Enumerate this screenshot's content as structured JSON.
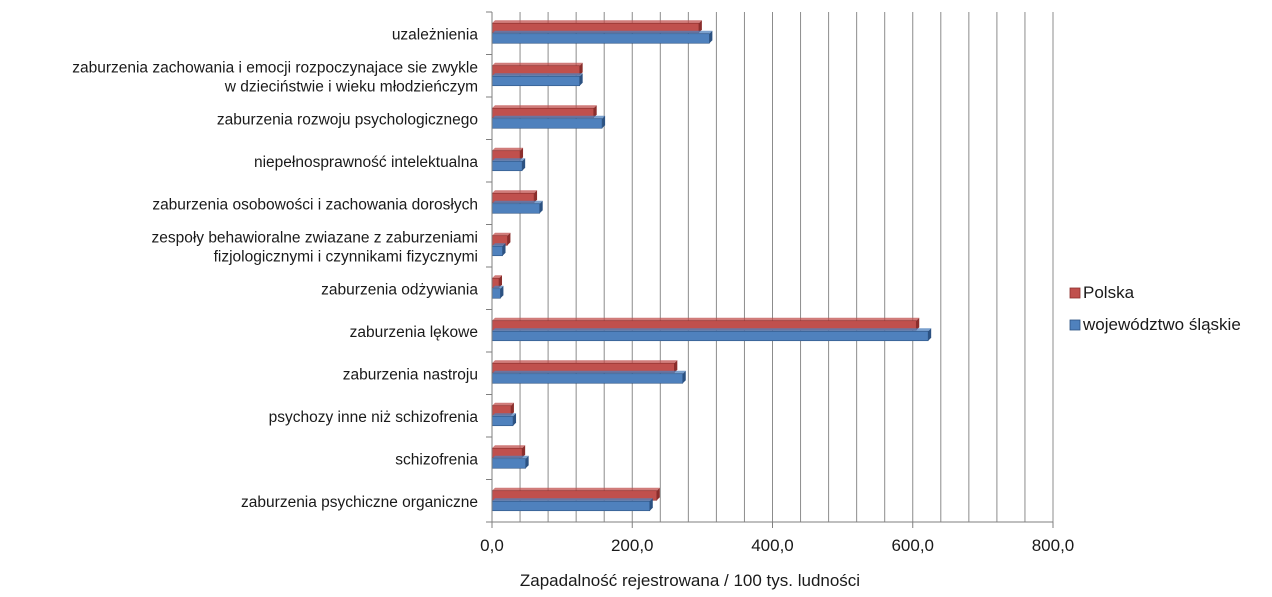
{
  "chart_data": {
    "type": "bar",
    "orientation": "horizontal",
    "title": "",
    "xlabel": "Zapadalność rejestrowana / 100 tys. ludności",
    "ylabel": "",
    "xlim": [
      0,
      800
    ],
    "xticks": [
      0,
      200,
      400,
      600,
      800
    ],
    "xtick_labels": [
      "0,0",
      "200,0",
      "400,0",
      "600,0",
      "800,0"
    ],
    "grid": "vertical minor gridlines every 40",
    "legend_position": "right",
    "categories": [
      [
        "uzależnienia"
      ],
      [
        "zaburzenia zachowania i emocji rozpoczynajace sie zwykle",
        "w dzieciństwie i wieku młodzieńczym"
      ],
      [
        "zaburzenia rozwoju psychologicznego"
      ],
      [
        "niepełnosprawność intelektualna"
      ],
      [
        "zaburzenia osobowości i zachowania dorosłych"
      ],
      [
        "zespoły behawioralne zwiazane z zaburzeniami",
        "fizjologicznymi i czynnikami fizycznymi"
      ],
      [
        "zaburzenia odżywiania"
      ],
      [
        "zaburzenia lękowe"
      ],
      [
        "zaburzenia nastroju"
      ],
      [
        "psychozy inne niż schizofrenia"
      ],
      [
        "schizofrenia"
      ],
      [
        "zaburzenia psychiczne organiczne"
      ]
    ],
    "series": [
      {
        "name": "Polska",
        "color": "#c0504d",
        "color_dark": "#8b2e2c",
        "values": [
          295,
          125,
          145,
          40,
          60,
          22,
          10,
          605,
          260,
          27,
          43,
          235
        ]
      },
      {
        "name": "województwo śląskie",
        "color": "#4f81bd",
        "color_dark": "#2c5282",
        "values": [
          310,
          125,
          157,
          43,
          68,
          15,
          12,
          622,
          272,
          30,
          48,
          225
        ]
      }
    ]
  }
}
